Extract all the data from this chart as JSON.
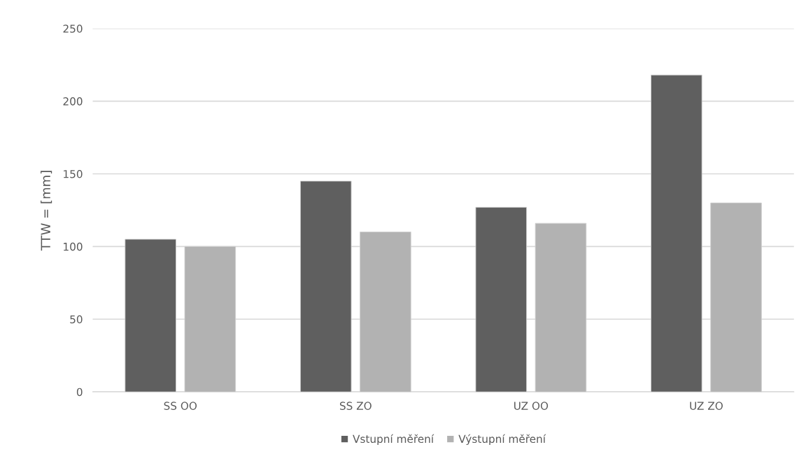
{
  "chart_data": {
    "type": "bar",
    "ylabel": "TTW = [mm]",
    "categories": [
      "SS OO",
      "SS ZO",
      "UZ OO",
      "UZ ZO"
    ],
    "series": [
      {
        "name": "Vstupní měření",
        "color": "#5f5f5f",
        "values": [
          105,
          145,
          127,
          218
        ]
      },
      {
        "name": "Výstupní měření",
        "color": "#b2b2b2",
        "values": [
          100,
          110,
          116,
          130
        ]
      }
    ],
    "ylim": [
      0,
      250
    ],
    "yticks": [
      0,
      50,
      100,
      150,
      200,
      250
    ],
    "grid": "y",
    "legend": "bottom"
  }
}
